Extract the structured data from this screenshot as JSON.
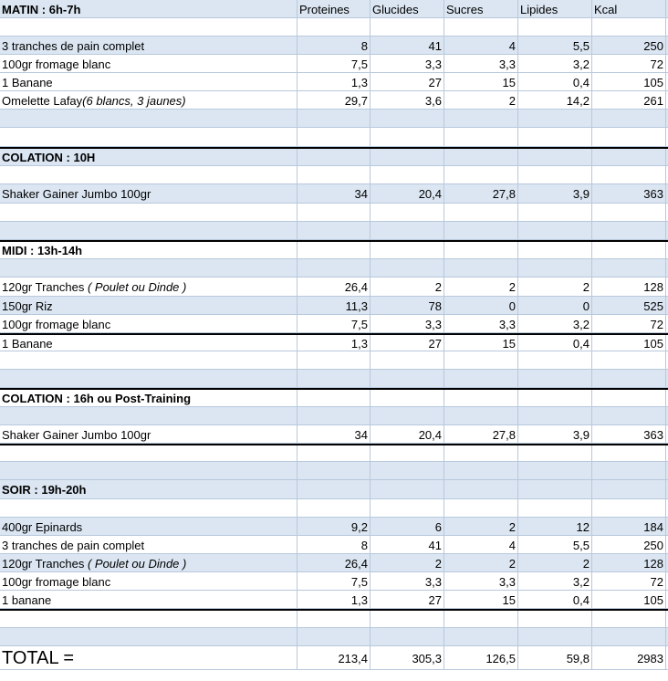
{
  "columns": [
    "Proteines",
    "Glucides",
    "Sucres",
    "Lipides",
    "Kcal"
  ],
  "rows": [
    {
      "type": "header",
      "style": "blue",
      "h": 20,
      "label": "MATIN : 6h-7h",
      "values": [
        "Proteines",
        "Glucides",
        "Sucres",
        "Lipides",
        "Kcal"
      ]
    },
    {
      "type": "empty",
      "style": "white",
      "h": 20
    },
    {
      "type": "item",
      "style": "blue",
      "h": 20,
      "label": "3 tranches de pain complet",
      "values": [
        "8",
        "41",
        "4",
        "5,5",
        "250"
      ]
    },
    {
      "type": "item",
      "style": "white",
      "h": 20,
      "label": "100gr fromage blanc",
      "values": [
        "7,5",
        "3,3",
        "3,3",
        "3,2",
        "72"
      ]
    },
    {
      "type": "item",
      "style": "white",
      "h": 20,
      "label": "1 Banane",
      "values": [
        "1,3",
        "27",
        "15",
        "0,4",
        "105"
      ]
    },
    {
      "type": "item",
      "style": "white",
      "h": 20,
      "label": "Omelette Lafay",
      "label_italic": "(6 blancs, 3 jaunes)",
      "values": [
        "29,7",
        "3,6",
        "2",
        "14,2",
        "261"
      ]
    },
    {
      "type": "empty",
      "style": "blue",
      "h": 20
    },
    {
      "type": "empty",
      "style": "white",
      "h": 21
    },
    {
      "type": "section",
      "style": "blue",
      "h": 21,
      "thick": true,
      "label": "COLATION : 10H"
    },
    {
      "type": "empty",
      "style": "white",
      "h": 20
    },
    {
      "type": "item",
      "style": "blue",
      "h": 21,
      "label": "Shaker Gainer Jumbo 100gr",
      "values": [
        "34",
        "20,4",
        "27,8",
        "3,9",
        "363"
      ]
    },
    {
      "type": "empty",
      "style": "white",
      "h": 20
    },
    {
      "type": "empty",
      "style": "blue",
      "h": 20
    },
    {
      "type": "section",
      "style": "white",
      "h": 21,
      "thick": true,
      "label": "MIDI : 13h-14h"
    },
    {
      "type": "empty",
      "style": "blue",
      "h": 20
    },
    {
      "type": "item",
      "style": "white",
      "h": 21,
      "label": "120gr Tranches ",
      "label_italic": "( Poulet ou Dinde )",
      "values": [
        "26,4",
        "2",
        "2",
        "2",
        "128"
      ]
    },
    {
      "type": "item",
      "style": "blue",
      "h": 20,
      "label": "150gr Riz",
      "values": [
        "11,3",
        "78",
        "0",
        "0",
        "525"
      ]
    },
    {
      "type": "item",
      "style": "white",
      "h": 20,
      "label": "100gr fromage blanc",
      "values": [
        "7,5",
        "3,3",
        "3,3",
        "3,2",
        "72"
      ]
    },
    {
      "type": "item",
      "style": "white",
      "h": 20,
      "thick": true,
      "label": "1 Banane",
      "values": [
        "1,3",
        "27",
        "15",
        "0,4",
        "105"
      ]
    },
    {
      "type": "empty",
      "style": "white",
      "h": 20
    },
    {
      "type": "empty",
      "style": "blue",
      "h": 20
    },
    {
      "type": "section",
      "style": "white",
      "h": 21,
      "thick": true,
      "label": "COLATION : 16h ou Post-Training"
    },
    {
      "type": "empty",
      "style": "blue",
      "h": 20
    },
    {
      "type": "item",
      "style": "white",
      "h": 20,
      "label": "Shaker Gainer Jumbo 100gr",
      "values": [
        "34",
        "20,4",
        "27,8",
        "3,9",
        "363"
      ]
    },
    {
      "type": "empty",
      "style": "white",
      "h": 20,
      "thick": true
    },
    {
      "type": "empty",
      "style": "blue",
      "h": 20
    },
    {
      "type": "section",
      "style": "blue",
      "h": 21,
      "label": "SOIR : 19h-20h"
    },
    {
      "type": "empty",
      "style": "white",
      "h": 20
    },
    {
      "type": "item",
      "style": "blue",
      "h": 20,
      "label": "400gr Epinards",
      "values": [
        "9,2",
        "6",
        "2",
        "12",
        "184"
      ]
    },
    {
      "type": "item",
      "style": "white",
      "h": 20,
      "label": "3 tranches de pain complet",
      "values": [
        "8",
        "41",
        "4",
        "5,5",
        "250"
      ]
    },
    {
      "type": "item",
      "style": "blue",
      "h": 20,
      "label": "120gr Tranches ",
      "label_italic": "( Poulet ou Dinde )",
      "values": [
        "26,4",
        "2",
        "2",
        "2",
        "128"
      ]
    },
    {
      "type": "item",
      "style": "white",
      "h": 20,
      "label": "100gr fromage blanc",
      "values": [
        "7,5",
        "3,3",
        "3,3",
        "3,2",
        "72"
      ]
    },
    {
      "type": "item",
      "style": "white",
      "h": 20,
      "label": "1 banane",
      "values": [
        "1,3",
        "27",
        "15",
        "0,4",
        "105"
      ]
    },
    {
      "type": "empty",
      "style": "white",
      "h": 21,
      "thick": true
    },
    {
      "type": "empty",
      "style": "blue",
      "h": 20
    },
    {
      "type": "total",
      "style": "white",
      "h": 26,
      "label": "TOTAL =",
      "values": [
        "213,4",
        "305,3",
        "126,5",
        "59,8",
        "2983"
      ]
    }
  ]
}
